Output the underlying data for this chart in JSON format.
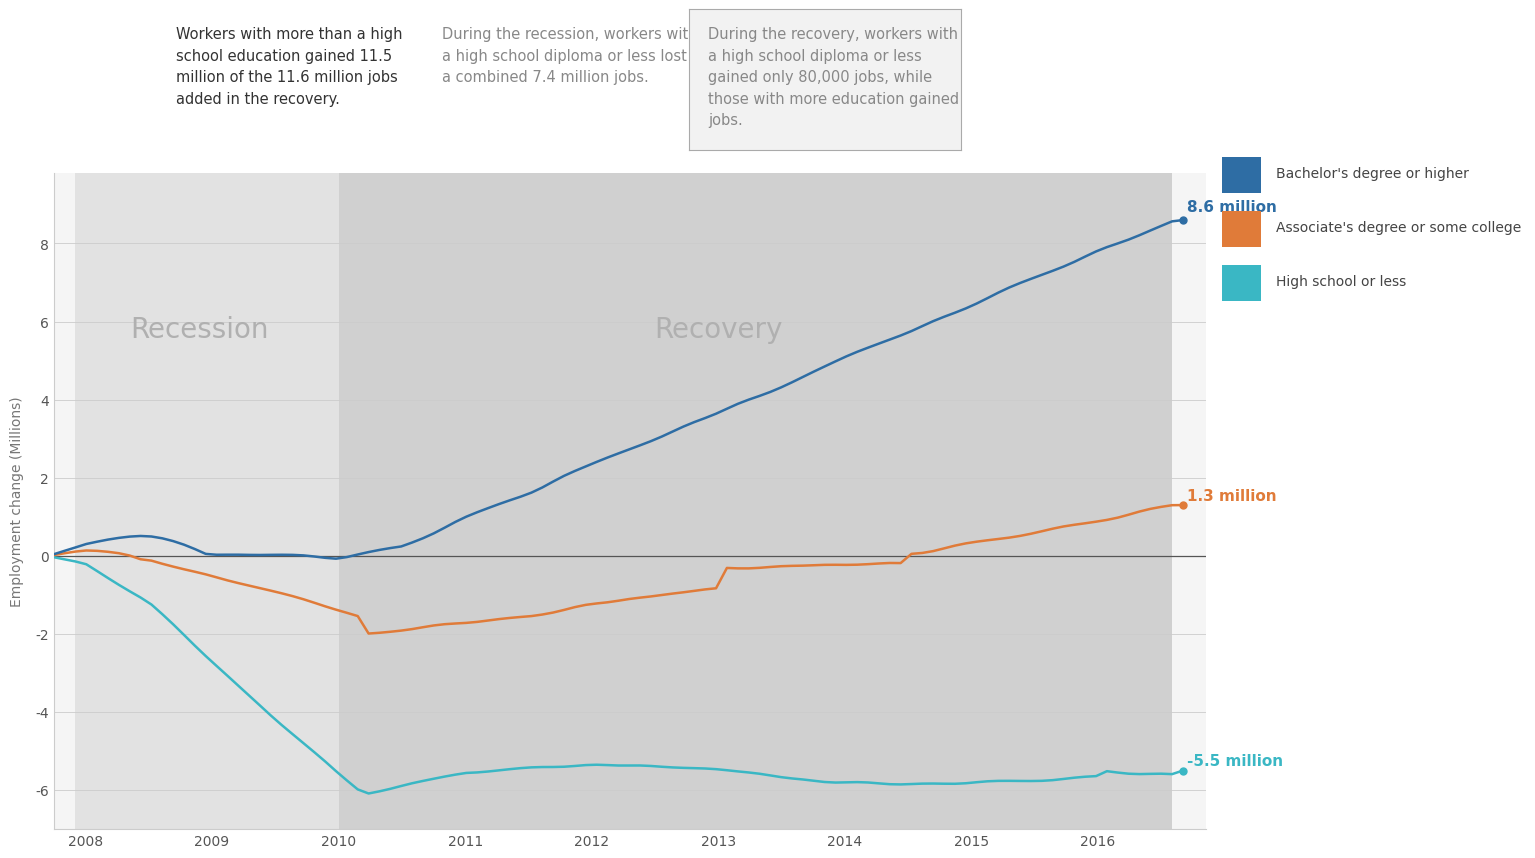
{
  "ylabel": "Employment change (Millions)",
  "recession_label": "Recession",
  "recovery_label": "Recovery",
  "recession_start": 2007.92,
  "recession_end": 2010.0,
  "recovery_end": 2016.58,
  "ylim": [
    -7.0,
    9.8
  ],
  "xlim_start": 2007.75,
  "xlim_end": 2016.85,
  "xticks": [
    2008,
    2009,
    2010,
    2011,
    2012,
    2013,
    2014,
    2015,
    2016
  ],
  "yticks": [
    -6,
    -4,
    -2,
    0,
    2,
    4,
    6,
    8
  ],
  "colors": {
    "bachelor": "#2e6da4",
    "associate": "#e07b39",
    "highschool": "#3ab7c4",
    "recession_bg": "#e2e2e2",
    "recovery_bg": "#d0d0d0",
    "outer_bg": "#f5f5f5"
  },
  "legend_labels": [
    "Bachelor's degree or higher",
    "Associate's degree or some college",
    "High school or less"
  ],
  "annotation_boxes": [
    {
      "text": "Workers with more than a high\nschool education gained 11.5\nmillion of the 11.6 million jobs\nadded in the recovery.",
      "bg": "#cccccc",
      "text_color": "#333333",
      "border": false
    },
    {
      "text": "During the recession, workers with\na high school diploma or less lost\na combined 7.4 million jobs.",
      "bg": "#e8e8e8",
      "text_color": "#888888",
      "border": false
    },
    {
      "text": "During the recovery, workers with\na high school diploma or less\ngained only 80,000 jobs, while\nthose with more education gained\njobs.",
      "bg": "#f2f2f2",
      "text_color": "#888888",
      "border": true
    }
  ]
}
